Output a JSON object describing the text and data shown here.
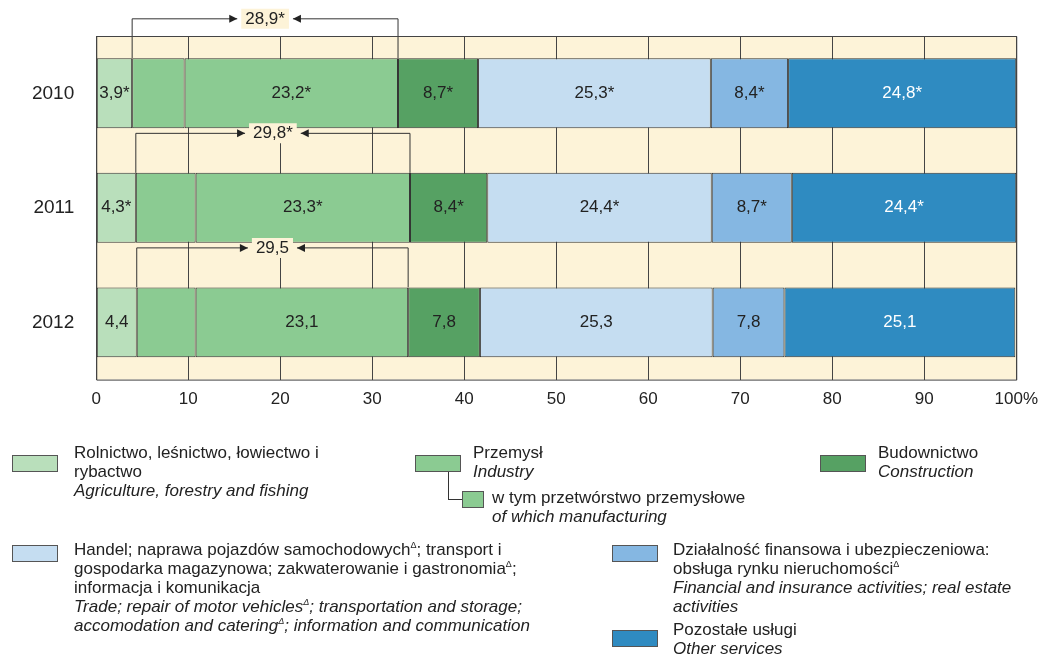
{
  "chart_data": {
    "type": "bar",
    "orientation": "horizontal",
    "stacked": true,
    "categories": [
      "2010",
      "2011",
      "2012"
    ],
    "series": [
      {
        "name": "Rolnictwo, leśnictwo, łowiectwo i rybactwo\nAgriculture, forestry and fishing",
        "color": "#b9dfbb",
        "values": [
          3.9,
          4.3,
          4.4
        ],
        "value_labels": [
          "3,9*",
          "4,3*",
          "4,4"
        ]
      },
      {
        "name": "Przemysł\nIndustry",
        "color": "#8bcb92",
        "values": [
          5.7,
          6.5,
          6.4
        ],
        "value_labels": [
          null,
          null,
          null
        ]
      },
      {
        "name": "w tym przetwórstwo przemysłowe\nof which manufacturing",
        "color": "#8bcb92",
        "values": [
          23.2,
          23.3,
          23.1
        ],
        "value_labels": [
          "23,2*",
          "23,3*",
          "23,1"
        ]
      },
      {
        "name": "Budownictwo\nConstruction",
        "color": "#56a163",
        "values": [
          8.7,
          8.4,
          7.8
        ],
        "value_labels": [
          "8,7*",
          "8,4*",
          "7,8"
        ]
      },
      {
        "name": "Handel; naprawa pojazdów samochodowych$^{Δ}$; transport i gospodarka magazynowa; zakwaterowanie i gastronomia$^{Δ}$; informacja i komunikacja\nTrade; repair of motor vehicles$^{Δ}$; transportation and storage; accomodation and catering$^{Δ}$; information and communication",
        "color": "#c5ddf1",
        "values": [
          25.3,
          24.4,
          25.3
        ],
        "value_labels": [
          "25,3*",
          "24,4*",
          "25,3"
        ]
      },
      {
        "name": "Działalność finansowa i ubezpieczeniowa: obsługa rynku nieruchomości$^{Δ}$\nFinancial and insurance activities; real estate activities",
        "color": "#85b7e2",
        "values": [
          8.4,
          8.7,
          7.8
        ],
        "value_labels": [
          "8,4*",
          "8,7*",
          "7,8"
        ]
      },
      {
        "name": "Pozostałe usługi\nOther services",
        "color": "#2f8bc1",
        "values": [
          24.8,
          24.4,
          25.1
        ],
        "value_labels": [
          "24,8*",
          "24,4*",
          "25,1"
        ]
      }
    ],
    "xlim": [
      0,
      100
    ],
    "xticks": [
      0,
      10,
      20,
      30,
      40,
      50,
      60,
      70,
      80,
      90,
      {
        "value": 100,
        "label": "100%"
      }
    ],
    "grid": "x",
    "legend": "bottom",
    "annotations": [
      "28,9*",
      "29,8*",
      "29,5"
    ]
  }
}
